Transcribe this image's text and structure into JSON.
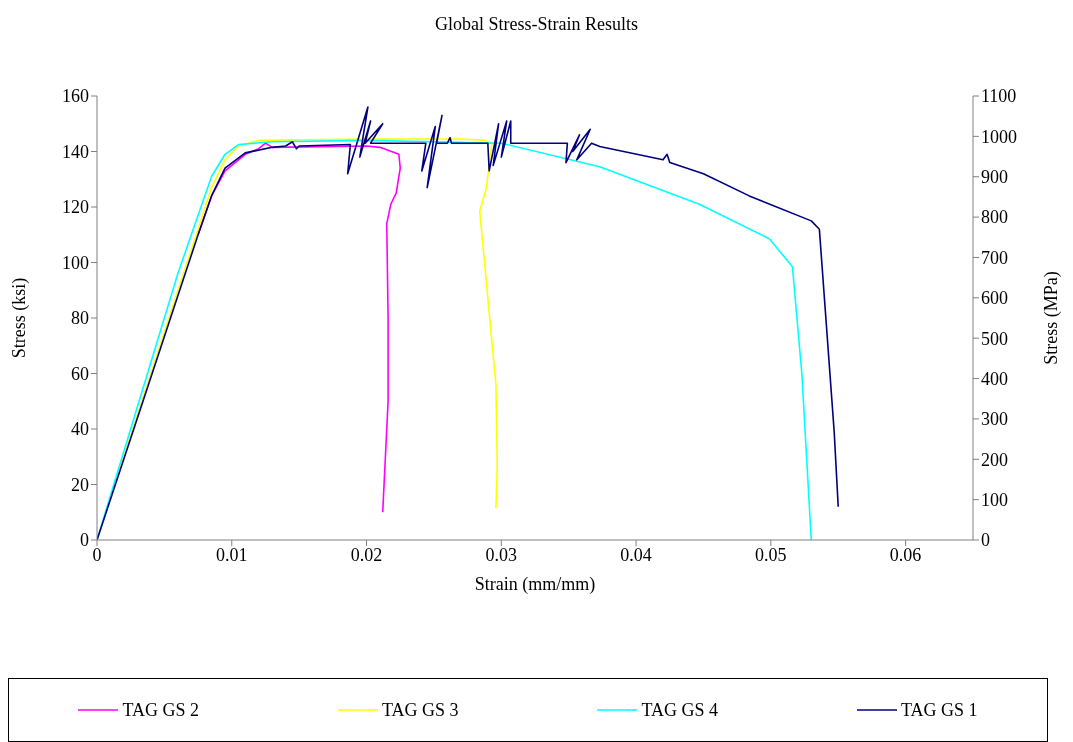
{
  "chart_data": {
    "type": "line",
    "title": "Global Stress-Strain Results",
    "xlabel": "Strain (mm/mm)",
    "ylabel": "Stress (ksi)",
    "y2label": "Stress (MPa)",
    "xlim": [
      0,
      0.065
    ],
    "xticks": [
      0,
      0.01,
      0.02,
      0.03,
      0.04,
      0.05,
      0.06
    ],
    "ylim": [
      0,
      160
    ],
    "yticks": [
      0,
      20,
      40,
      60,
      80,
      100,
      120,
      140,
      160
    ],
    "y2lim": [
      0,
      1100
    ],
    "y2ticks": [
      0,
      100,
      200,
      300,
      400,
      500,
      600,
      700,
      800,
      900,
      1000,
      1100
    ],
    "legend": "bottom",
    "series": [
      {
        "name": "TAG GS 2",
        "color": "#ff00ff",
        "x": [
          0.0075,
          0.0085,
          0.0095,
          0.011,
          0.012,
          0.0125,
          0.013,
          0.02,
          0.021,
          0.0224,
          0.0225,
          0.0222,
          0.0218,
          0.0215,
          0.0216,
          0.0216,
          0.0212
        ],
        "values": [
          110,
          124,
          133,
          139,
          141,
          143,
          141.5,
          142,
          141.5,
          139,
          134,
          125,
          121,
          114,
          80,
          50,
          10
        ]
      },
      {
        "name": "TAG GS 3",
        "color": "#ffff00",
        "x": [
          0,
          0.003,
          0.006,
          0.0075,
          0.0085,
          0.0095,
          0.0105,
          0.012,
          0.02,
          0.027,
          0.0288,
          0.0293,
          0.0289,
          0.0284,
          0.0296,
          0.0297,
          0.0296
        ],
        "values": [
          0,
          45,
          90,
          112,
          127,
          137,
          142,
          144,
          144.5,
          144.5,
          144,
          143,
          127,
          118.5,
          56,
          27,
          11.5
        ]
      },
      {
        "name": "TAG GS 4",
        "color": "#00ffff",
        "x": [
          0,
          0.003,
          0.006,
          0.0075,
          0.0085,
          0.0095,
          0.0105,
          0.013,
          0.02,
          0.03,
          0.0373,
          0.0447,
          0.0499,
          0.0516,
          0.0523,
          0.053
        ],
        "values": [
          0,
          48,
          96,
          117,
          131,
          139,
          142.5,
          143.5,
          144,
          143,
          134.5,
          121,
          108.5,
          98.5,
          60,
          0
        ]
      },
      {
        "name": "TAG GS 1",
        "color": "#000080",
        "x": [
          0,
          0.003,
          0.006,
          0.0075,
          0.0085,
          0.0095,
          0.011,
          0.013,
          0.014,
          0.0145,
          0.0148,
          0.015,
          0.0188,
          0.0186,
          0.0201,
          0.0195,
          0.0203,
          0.0199,
          0.0212,
          0.0203,
          0.021,
          0.0244,
          0.0241,
          0.0251,
          0.0245,
          0.0256,
          0.0252,
          0.026,
          0.0262,
          0.0263,
          0.029,
          0.0291,
          0.0298,
          0.0294,
          0.0304,
          0.03,
          0.0307,
          0.0307,
          0.0349,
          0.0348,
          0.0358,
          0.0353,
          0.0366,
          0.0356,
          0.0367,
          0.0373,
          0.042,
          0.0423,
          0.0425,
          0.045,
          0.0484,
          0.053,
          0.0536,
          0.0547,
          0.055
        ],
        "values": [
          0,
          44,
          88,
          110,
          124,
          134,
          139.5,
          141.5,
          142,
          143.5,
          141,
          142,
          142.5,
          132,
          156,
          138,
          151,
          143,
          150,
          143,
          143,
          143,
          133,
          149,
          127,
          153,
          143,
          143,
          145,
          143,
          143,
          133,
          150,
          135,
          151,
          138,
          151,
          143,
          143,
          136,
          146,
          140,
          148,
          137,
          143,
          141.8,
          137,
          139,
          136,
          132,
          124,
          115,
          112,
          39,
          12
        ]
      }
    ]
  }
}
